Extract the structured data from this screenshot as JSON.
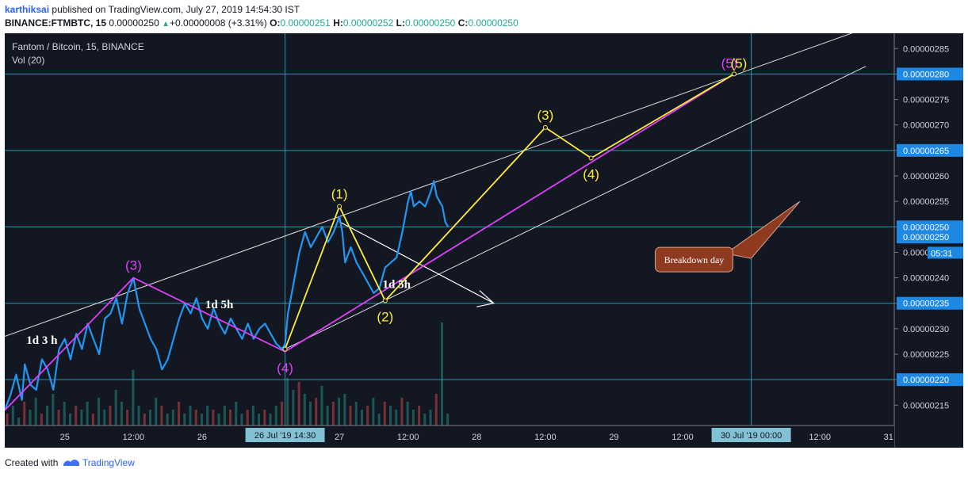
{
  "header": {
    "author": "karthiksai",
    "published": "published on TradingView.com, July 27, 2019 14:54:30 IST",
    "ticker": "BINANCE:FTMBTC, 15",
    "last": "0.00000250",
    "change": "+0.00000008 (+3.31%)",
    "o_label": "O:",
    "o": "0.00000251",
    "h_label": "H:",
    "h": "0.00000252",
    "l_label": "L:",
    "l": "0.00000250",
    "c_label": "C:",
    "c": "0.00000250"
  },
  "legend": {
    "symbol": "Fantom / Bitcoin, 15, BINANCE",
    "volume": "Vol (20)"
  },
  "footer": {
    "created": "Created with",
    "brand": "TradingView"
  },
  "colors": {
    "background": "#131722",
    "price": "#2196f3",
    "wave_magenta": "#e040fb",
    "wave_yellow": "#ffeb3b",
    "hline": "#26c6da",
    "annotation": "#8d3a20"
  },
  "chart_data": {
    "type": "line",
    "series_name": "",
    "y_range": [
      2.11e-06,
      2.88e-06
    ],
    "y_ticks": [
      "0.00000215",
      "0.00000220",
      "0.00000225",
      "0.00000230",
      "0.00000235",
      "0.00000240",
      "0.00000245",
      "0.00000250",
      "0.00000255",
      "0.00000260",
      "0.00000265",
      "0.00000270",
      "0.00000275",
      "0.00000280",
      "0.00000285"
    ],
    "y_tick_values": [
      215,
      220,
      225,
      230,
      235,
      240,
      245,
      250,
      255,
      260,
      265,
      270,
      275,
      280,
      285
    ],
    "x_ticks": [
      {
        "label": "25",
        "t": 0
      },
      {
        "label": "12:00",
        "t": 12
      },
      {
        "label": "26",
        "t": 24
      },
      {
        "label": "27",
        "t": 48
      },
      {
        "label": "12:00",
        "t": 60
      },
      {
        "label": "28",
        "t": 72
      },
      {
        "label": "12:00",
        "t": 84
      },
      {
        "label": "29",
        "t": 96
      },
      {
        "label": "12:00",
        "t": 108
      },
      {
        "label": "12:00",
        "t": 132
      },
      {
        "label": "31",
        "t": 144
      }
    ],
    "x_range_hours": [
      -10.5,
      145
    ],
    "cursor_x_label": "26 Jul '19  14:30",
    "cursor_x_t": 38.5,
    "cursor2_x_label": "30 Jul '19  00:00",
    "cursor2_x_t": 120,
    "horizontal_levels": [
      280,
      265,
      250,
      235,
      220
    ],
    "price_labels": [
      {
        "text": "0.00000280",
        "v": 280
      },
      {
        "text": "0.00000265",
        "v": 265
      },
      {
        "text": "0.00000250",
        "v": 250
      },
      {
        "text": "0.00000250",
        "v": 248
      },
      {
        "text": "0.00000235",
        "v": 235
      },
      {
        "text": "0.00000220",
        "v": 220
      }
    ],
    "countdown": "05:31",
    "price_points": [
      [
        -10.5,
        214
      ],
      [
        -9.5,
        217
      ],
      [
        -8.5,
        221
      ],
      [
        -7.5,
        216
      ],
      [
        -7,
        223
      ],
      [
        -6,
        219
      ],
      [
        -5,
        218
      ],
      [
        -4,
        224
      ],
      [
        -3,
        222
      ],
      [
        -2,
        218
      ],
      [
        -1,
        226
      ],
      [
        0,
        228
      ],
      [
        1,
        224
      ],
      [
        2,
        229
      ],
      [
        3,
        226
      ],
      [
        4,
        231
      ],
      [
        5,
        228
      ],
      [
        6,
        225
      ],
      [
        7,
        232
      ],
      [
        8,
        233
      ],
      [
        9,
        236
      ],
      [
        10,
        231
      ],
      [
        11,
        237
      ],
      [
        12,
        240
      ],
      [
        13,
        234
      ],
      [
        14,
        231
      ],
      [
        15,
        228
      ],
      [
        16,
        226
      ],
      [
        17,
        222
      ],
      [
        18,
        224
      ],
      [
        19,
        228
      ],
      [
        20,
        232
      ],
      [
        21,
        235
      ],
      [
        22,
        233
      ],
      [
        23,
        236
      ],
      [
        24,
        232
      ],
      [
        25,
        230
      ],
      [
        26,
        234
      ],
      [
        27,
        231
      ],
      [
        28,
        229
      ],
      [
        29,
        232
      ],
      [
        30,
        230
      ],
      [
        31,
        228
      ],
      [
        32,
        231
      ],
      [
        33,
        228
      ],
      [
        34,
        230
      ],
      [
        35,
        231
      ],
      [
        36,
        229
      ],
      [
        37,
        227
      ],
      [
        38,
        226
      ],
      [
        38.5,
        227
      ],
      [
        39,
        233
      ],
      [
        40,
        239
      ],
      [
        41,
        245
      ],
      [
        42,
        249
      ],
      [
        43,
        246
      ],
      [
        44,
        248
      ],
      [
        45,
        250
      ],
      [
        46,
        247
      ],
      [
        47,
        249
      ],
      [
        48,
        252
      ],
      [
        48.5,
        249
      ],
      [
        49,
        243
      ],
      [
        50,
        246
      ],
      [
        51,
        243
      ],
      [
        52,
        241
      ],
      [
        53,
        239
      ],
      [
        54,
        237
      ],
      [
        55,
        238
      ],
      [
        56,
        242
      ],
      [
        57,
        243
      ],
      [
        58,
        244
      ],
      [
        59,
        249
      ],
      [
        60,
        255
      ],
      [
        60.5,
        257
      ],
      [
        61,
        254
      ],
      [
        62,
        255
      ],
      [
        63,
        254
      ],
      [
        64,
        257
      ],
      [
        64.5,
        259
      ],
      [
        65,
        256
      ],
      [
        66,
        254
      ],
      [
        66.5,
        251
      ],
      [
        67,
        250
      ]
    ],
    "volume_points": [
      [
        -10,
        3
      ],
      [
        -9,
        5
      ],
      [
        -8,
        2
      ],
      [
        -7,
        6
      ],
      [
        -6,
        4
      ],
      [
        -5,
        7
      ],
      [
        -4,
        3
      ],
      [
        -3,
        5
      ],
      [
        -2,
        8
      ],
      [
        -1,
        4
      ],
      [
        0,
        6
      ],
      [
        1,
        3
      ],
      [
        2,
        5
      ],
      [
        3,
        4
      ],
      [
        4,
        6
      ],
      [
        5,
        3
      ],
      [
        6,
        7
      ],
      [
        7,
        4
      ],
      [
        8,
        5
      ],
      [
        9,
        9
      ],
      [
        10,
        6
      ],
      [
        11,
        4
      ],
      [
        12,
        14
      ],
      [
        13,
        5
      ],
      [
        14,
        3
      ],
      [
        15,
        4
      ],
      [
        16,
        7
      ],
      [
        17,
        5
      ],
      [
        18,
        3
      ],
      [
        19,
        4
      ],
      [
        20,
        6
      ],
      [
        21,
        3
      ],
      [
        22,
        5
      ],
      [
        23,
        4
      ],
      [
        24,
        3
      ],
      [
        25,
        5
      ],
      [
        26,
        4
      ],
      [
        27,
        3
      ],
      [
        28,
        5
      ],
      [
        29,
        4
      ],
      [
        30,
        6
      ],
      [
        31,
        3
      ],
      [
        32,
        4
      ],
      [
        33,
        5
      ],
      [
        34,
        3
      ],
      [
        35,
        4
      ],
      [
        36,
        3
      ],
      [
        37,
        5
      ],
      [
        38,
        6
      ],
      [
        39,
        12
      ],
      [
        40,
        9
      ],
      [
        41,
        11
      ],
      [
        42,
        8
      ],
      [
        43,
        6
      ],
      [
        44,
        7
      ],
      [
        45,
        10
      ],
      [
        46,
        5
      ],
      [
        47,
        6
      ],
      [
        48,
        7
      ],
      [
        49,
        8
      ],
      [
        50,
        5
      ],
      [
        51,
        6
      ],
      [
        52,
        4
      ],
      [
        53,
        5
      ],
      [
        54,
        7
      ],
      [
        55,
        3
      ],
      [
        56,
        6
      ],
      [
        57,
        5
      ],
      [
        58,
        4
      ],
      [
        59,
        7
      ],
      [
        60,
        6
      ],
      [
        61,
        4
      ],
      [
        62,
        5
      ],
      [
        63,
        3
      ],
      [
        64,
        4
      ],
      [
        65,
        8
      ],
      [
        66,
        26
      ],
      [
        67,
        3
      ]
    ],
    "wave_magenta_labels": [
      {
        "text": "(3)",
        "t": 12,
        "v": 240
      },
      {
        "text": "(4)",
        "t": 38.5,
        "v": 225.5
      },
      {
        "text": "(5)",
        "t": 117,
        "v": 280
      }
    ],
    "wave_yellow_labels": [
      {
        "text": "(1)",
        "t": 48,
        "v": 254
      },
      {
        "text": "(2)",
        "t": 56,
        "v": 235.5
      },
      {
        "text": "(3)",
        "t": 84,
        "v": 269.5
      },
      {
        "text": "(4)",
        "t": 92,
        "v": 263.5
      },
      {
        "text": "(5)",
        "t": 117,
        "v": 280
      }
    ],
    "time_annotations": [
      {
        "text": "1d 3 h",
        "t": -4,
        "v": 227
      },
      {
        "text": "1d 5h",
        "t": 27,
        "v": 234
      },
      {
        "text": "1d 5h",
        "t": 58,
        "v": 238
      }
    ],
    "callout": {
      "text": "Breakdown day",
      "t": 110,
      "v": 243.5
    }
  }
}
